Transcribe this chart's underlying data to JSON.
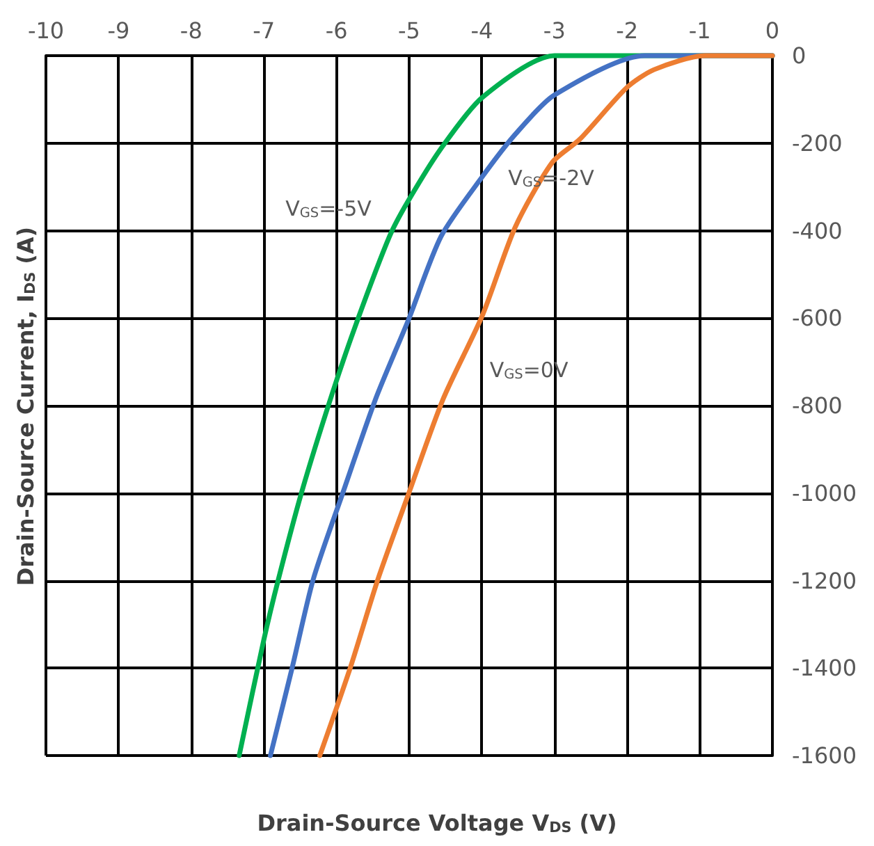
{
  "chart_data": {
    "type": "line",
    "xlabel": "Drain-Source Voltage V$_{DS}$ (V)",
    "ylabel": "Drain-Source Current, I$_{DS}$ (A)",
    "series": [
      {
        "color": "#00b050",
        "x": [
          0,
          -3,
          -3.99,
          -4.56,
          -5.02,
          -5.27,
          -5.71,
          -6.06,
          -6.48,
          -6.8,
          -7.0,
          -7.34
        ],
        "values": [
          0,
          0,
          -95,
          -212,
          -334,
          -413,
          -604,
          -773,
          -998,
          -1197,
          -1335,
          -1600
        ]
      },
      {
        "color": "#4472c4",
        "x": [
          0,
          -1.76,
          -3.0,
          -3.54,
          -3.99,
          -4.56,
          -5.01,
          -5.46,
          -5.91,
          -6.32,
          -6.61,
          -6.91
        ],
        "values": [
          0,
          0,
          -90,
          -180,
          -276,
          -413,
          -604,
          -784,
          -998,
          -1197,
          -1399,
          -1600
        ]
      },
      {
        "color": "#ed7d31",
        "x": [
          0,
          -0.93,
          -1.63,
          -2.01,
          -2.65,
          -3.03,
          -3.54,
          -3.99,
          -4.53,
          -5.0,
          -5.43,
          -5.81,
          -6.23
        ],
        "values": [
          0,
          0,
          -32,
          -74,
          -191,
          -244,
          -392,
          -593,
          -784,
          -998,
          -1197,
          -1399,
          -1600
        ]
      }
    ],
    "annotations": [
      "V$_{GS}$=-5V",
      "V$_{GS}$=-2V",
      "V$_{GS}$=0V"
    ],
    "xlim": [
      -10,
      0
    ],
    "xticks": [
      -10,
      -9,
      -8,
      -7,
      -6,
      -5,
      -4,
      -3,
      -2,
      -1,
      0
    ],
    "ylim": [
      -1600,
      0
    ],
    "yticks": [
      -1600,
      -1400,
      -1200,
      -1000,
      -800,
      -600,
      -400,
      -200,
      0
    ],
    "grid": true,
    "marker": "none",
    "line_style": "solid"
  }
}
